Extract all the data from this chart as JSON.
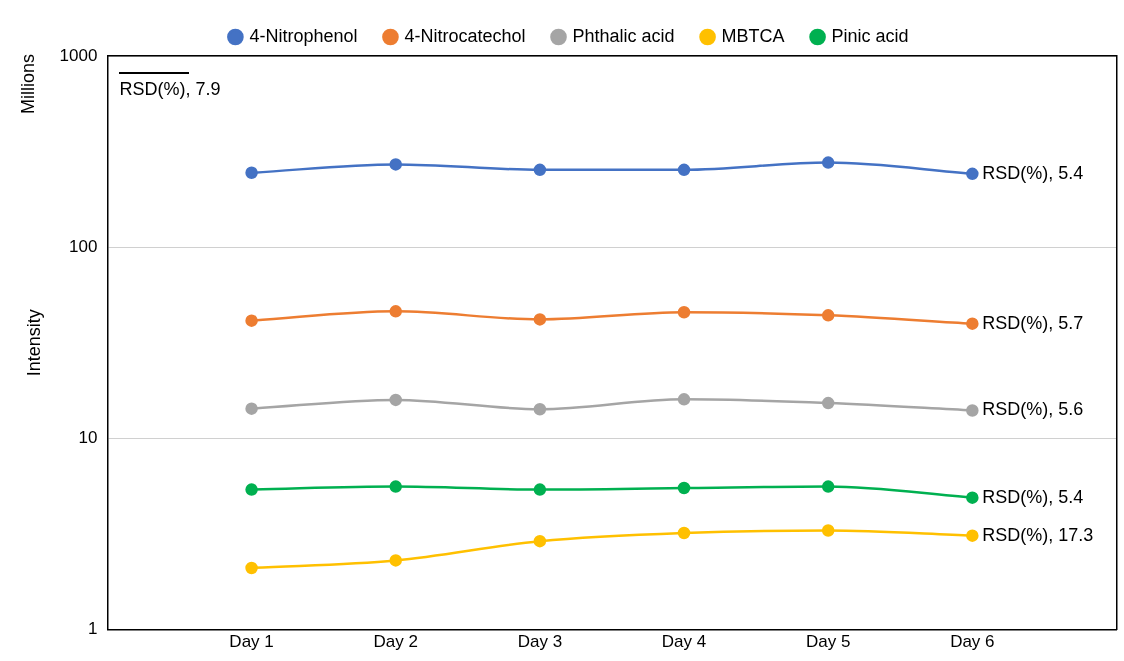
{
  "chart_data": {
    "type": "line",
    "ylabel": "Intensity",
    "categories": [
      "Day 1",
      "Day 2",
      "Day 3",
      "Day 4",
      "Day 5",
      "Day 6"
    ],
    "series": [
      {
        "name": "4-Nitrophenol",
        "color": "#4472c4",
        "values": [
          245,
          271,
          254,
          254,
          277,
          242
        ]
      },
      {
        "name": "4-Nitrocatechol",
        "color": "#ed7d31",
        "values": [
          41.3,
          46.2,
          41.9,
          45.7,
          44.0,
          39.8
        ]
      },
      {
        "name": "Phthalic acid",
        "color": "#a5a5a5",
        "values": [
          14.3,
          15.9,
          14.2,
          16.0,
          15.3,
          14.0
        ]
      },
      {
        "name": "MBTCA",
        "color": "#ffc000",
        "values": [
          2.1,
          2.3,
          2.9,
          3.2,
          3.3,
          3.1
        ]
      },
      {
        "name": "Pinic acid",
        "color": "#00b050",
        "values": [
          5.4,
          5.6,
          5.4,
          5.5,
          5.6,
          4.9
        ]
      }
    ],
    "log": "y",
    "ylim": [
      1,
      1000
    ],
    "yticks": [
      1,
      10,
      100,
      1000
    ],
    "grid": "y",
    "legend": "top",
    "marker": "circle",
    "line_style": "solid",
    "annotations": [
      "Millions",
      "RSD(%), 7.9",
      {
        "text": "RSD(%), 5.4",
        "x": "Day 6",
        "y": 242
      },
      {
        "text": "RSD(%), 5.7",
        "x": "Day 6",
        "y": 39.8
      },
      {
        "text": "RSD(%), 5.6",
        "x": "Day 6",
        "y": 14.0
      },
      {
        "text": "RSD(%), 5.4",
        "x": "Day 6",
        "y": 4.9
      },
      {
        "text": "RSD(%), 17.3",
        "x": "Day 6",
        "y": 3.1
      }
    ]
  }
}
